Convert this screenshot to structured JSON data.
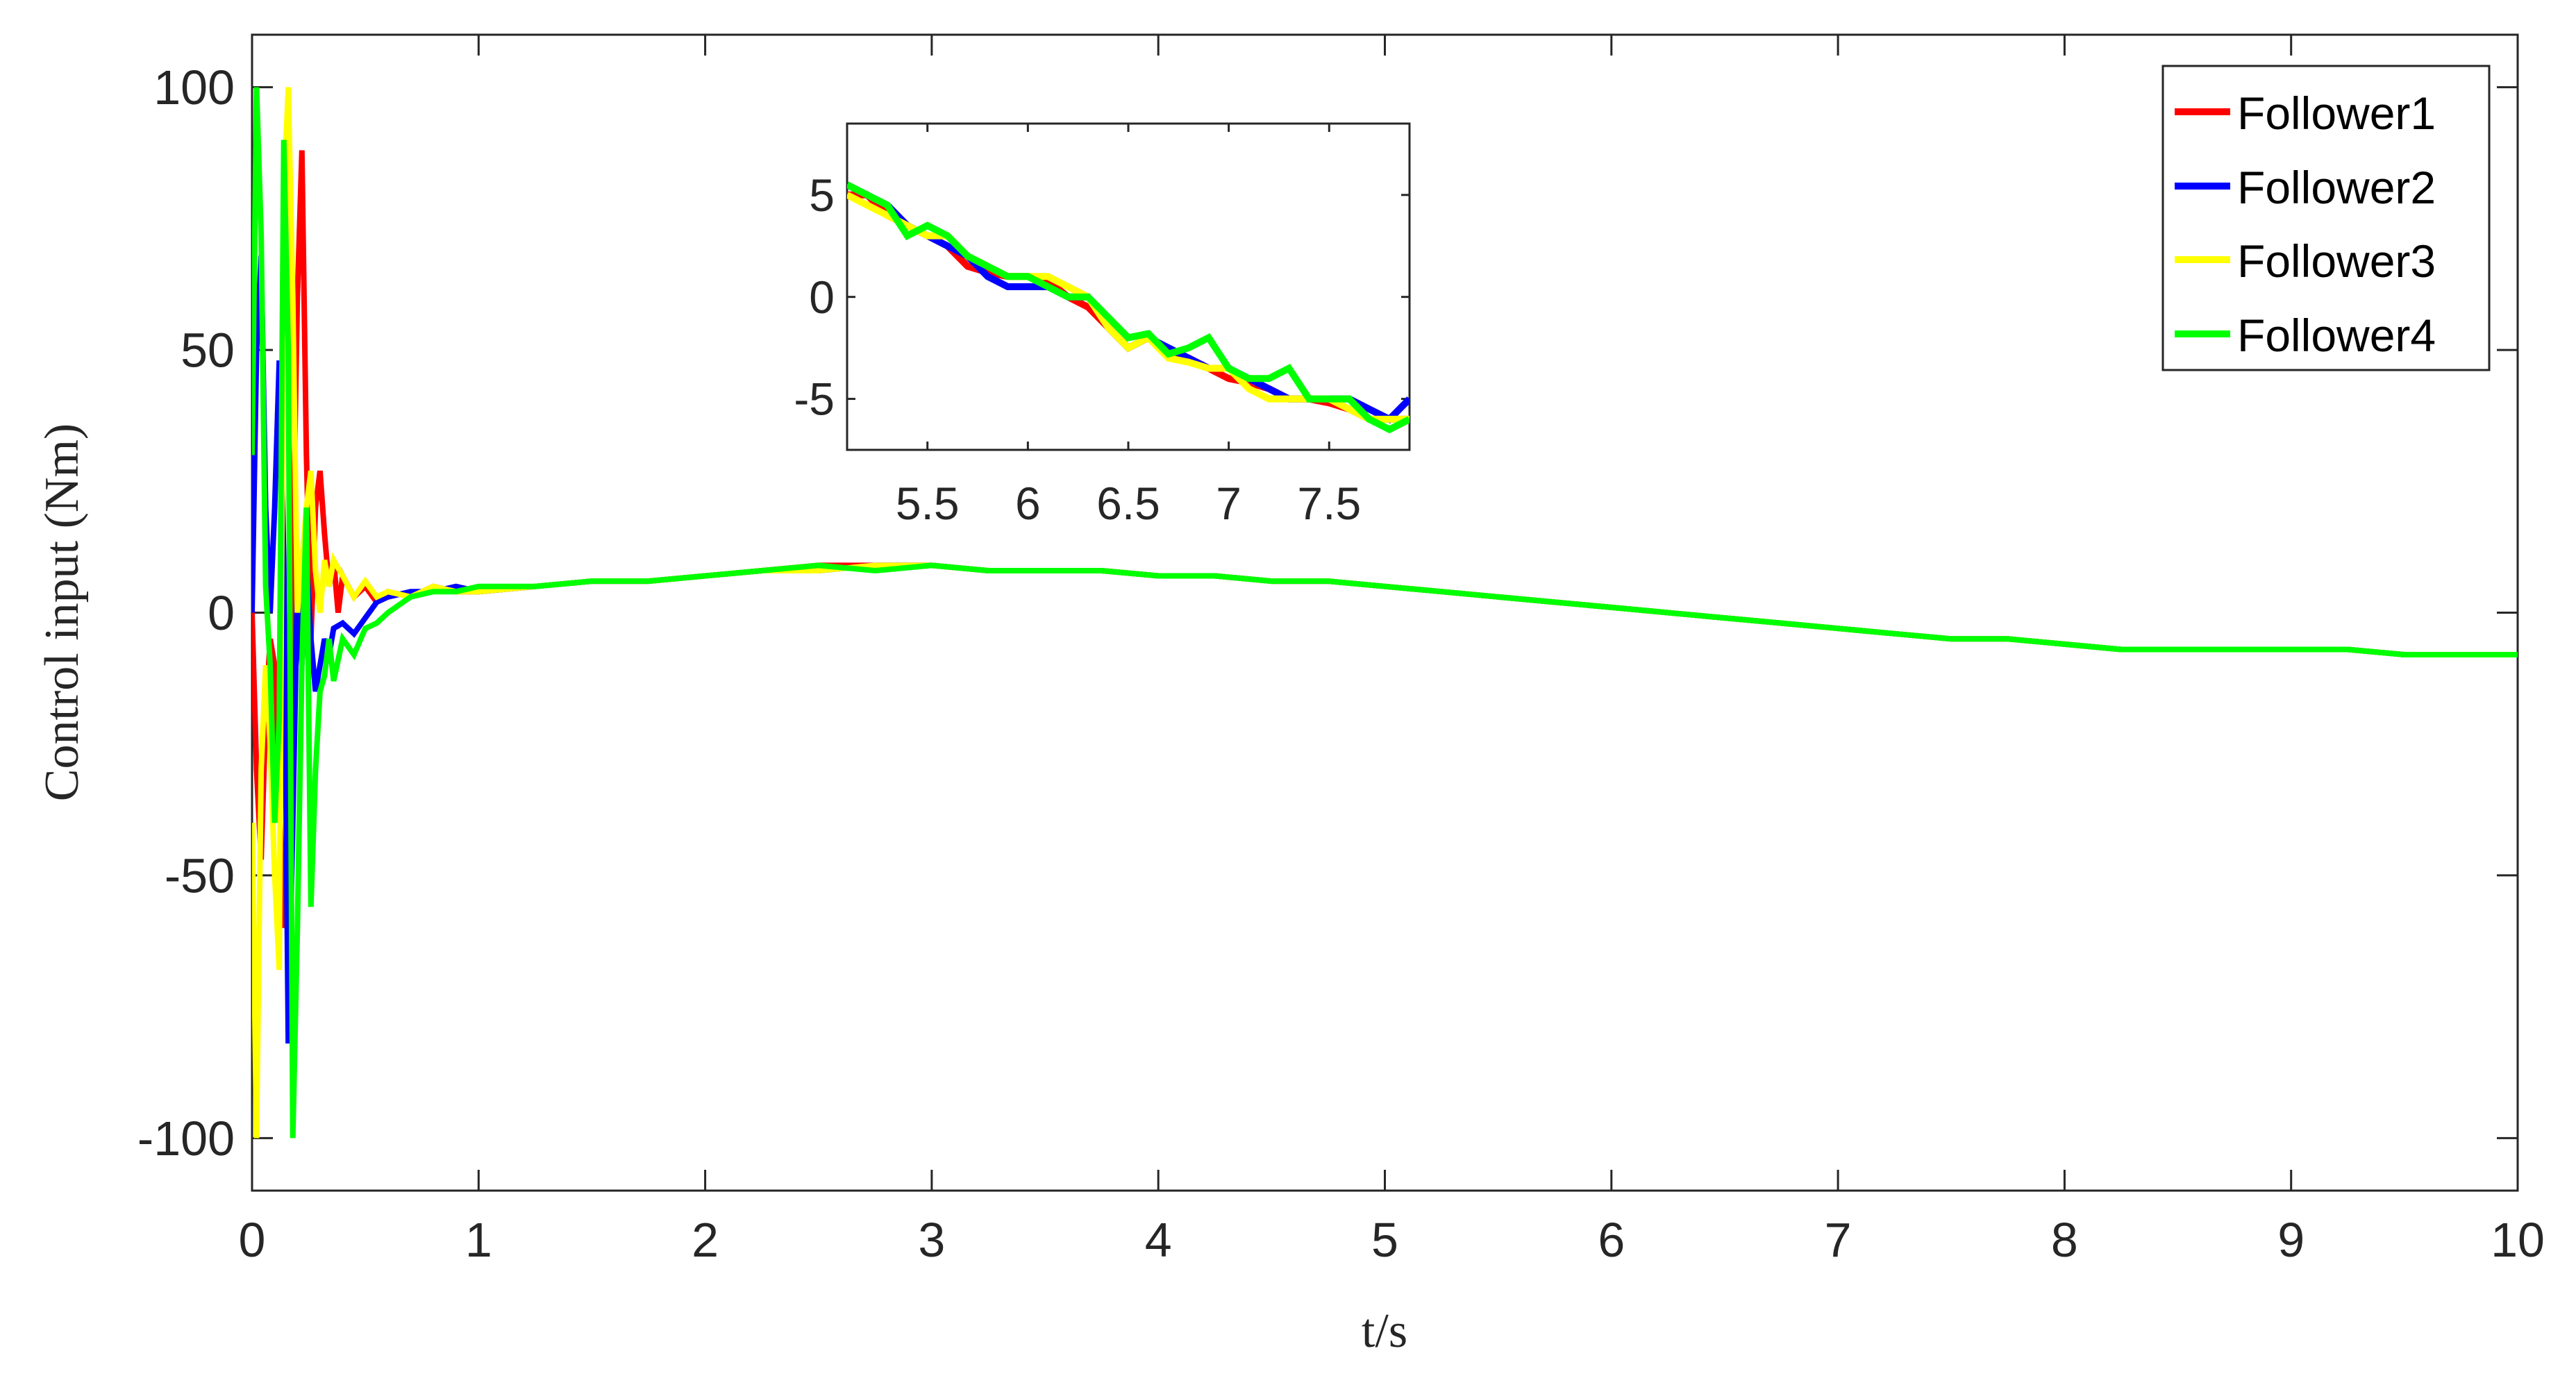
{
  "chart_data": [
    {
      "id": "main",
      "type": "line",
      "title": "",
      "xlabel": "t/s",
      "ylabel": "Control input (Nm)",
      "xlim": [
        0,
        10
      ],
      "ylim": [
        -110,
        110
      ],
      "xticks": [
        0,
        1,
        2,
        3,
        4,
        5,
        6,
        7,
        8,
        9,
        10
      ],
      "xtick_labels": [
        "0",
        "1",
        "2",
        "3",
        "4",
        "5",
        "6",
        "7",
        "8",
        "9",
        "10"
      ],
      "yticks": [
        -100,
        -50,
        0,
        50,
        100
      ],
      "ytick_labels": [
        "-100",
        "-50",
        "0",
        "50",
        "100"
      ],
      "grid": false,
      "legend_position": "top-right",
      "series": [
        {
          "name": "Follower1",
          "color": "#ff0000",
          "x": [
            0,
            0.02,
            0.04,
            0.06,
            0.08,
            0.1,
            0.12,
            0.14,
            0.16,
            0.18,
            0.2,
            0.22,
            0.24,
            0.26,
            0.28,
            0.3,
            0.32,
            0.34,
            0.36,
            0.38,
            0.4,
            0.45,
            0.5,
            0.55,
            0.6,
            0.7,
            0.8,
            0.9,
            1,
            1.25,
            1.5,
            1.75,
            2,
            2.25,
            2.5,
            2.75,
            3,
            3.25,
            3.5,
            3.75,
            4,
            4.25,
            4.5,
            4.75,
            5,
            5.25,
            5.5,
            5.75,
            6,
            6.25,
            6.5,
            6.75,
            7,
            7.25,
            7.5,
            7.75,
            8,
            8.25,
            8.5,
            8.75,
            9,
            9.25,
            9.5,
            9.75,
            10
          ],
          "y": [
            0,
            -30,
            -47,
            -20,
            -5,
            -10,
            -35,
            -60,
            -40,
            10,
            60,
            88,
            30,
            -5,
            20,
            27,
            15,
            5,
            10,
            0,
            7,
            3,
            5,
            2,
            4,
            3,
            5,
            4,
            4,
            5,
            6,
            6,
            7,
            8,
            9,
            9,
            9,
            8,
            8,
            8,
            7,
            7,
            6,
            6,
            5,
            4,
            3,
            2,
            1,
            0,
            -1,
            -2,
            -3,
            -4,
            -5,
            -5,
            -6,
            -7,
            -7,
            -7,
            -7,
            -7,
            -8,
            -8,
            -8
          ]
        },
        {
          "name": "Follower2",
          "color": "#0000ff",
          "x": [
            0,
            0.02,
            0.04,
            0.06,
            0.08,
            0.1,
            0.12,
            0.14,
            0.16,
            0.18,
            0.2,
            0.22,
            0.24,
            0.26,
            0.28,
            0.3,
            0.32,
            0.34,
            0.36,
            0.4,
            0.45,
            0.5,
            0.55,
            0.6,
            0.7,
            0.8,
            0.9,
            1,
            1.25,
            1.5,
            1.75,
            2,
            2.25,
            2.5,
            2.75,
            3,
            3.25,
            3.5,
            3.75,
            4,
            4.25,
            4.5,
            4.75,
            5,
            5.25,
            5.5,
            5.75,
            6,
            6.25,
            6.5,
            6.75,
            7,
            7.25,
            7.5,
            7.75,
            8,
            8.25,
            8.5,
            8.75,
            9,
            9.25,
            9.5,
            9.75,
            10
          ],
          "y": [
            0,
            50,
            68,
            20,
            0,
            20,
            48,
            10,
            -82,
            -40,
            5,
            -10,
            10,
            -5,
            -15,
            -10,
            -5,
            -8,
            -3,
            -2,
            -4,
            -1,
            2,
            3,
            4,
            4,
            5,
            4,
            5,
            6,
            6,
            7,
            8,
            8,
            9,
            9,
            8,
            8,
            8,
            7,
            7,
            6,
            6,
            5,
            4,
            3,
            2,
            1,
            0,
            -1,
            -2,
            -3,
            -4,
            -5,
            -5,
            -6,
            -7,
            -7,
            -7,
            -7,
            -7,
            -8,
            -8,
            -8
          ]
        },
        {
          "name": "Follower3",
          "color": "#ffff00",
          "x": [
            0,
            0.02,
            0.04,
            0.06,
            0.08,
            0.1,
            0.12,
            0.14,
            0.16,
            0.18,
            0.2,
            0.22,
            0.24,
            0.26,
            0.28,
            0.3,
            0.32,
            0.34,
            0.36,
            0.4,
            0.45,
            0.5,
            0.55,
            0.6,
            0.7,
            0.8,
            0.9,
            1,
            1.25,
            1.5,
            1.75,
            2,
            2.25,
            2.5,
            2.75,
            3,
            3.25,
            3.5,
            3.75,
            4,
            4.25,
            4.5,
            4.75,
            5,
            5.25,
            5.5,
            5.75,
            6,
            6.25,
            6.5,
            6.75,
            7,
            7.25,
            7.5,
            7.75,
            8,
            8.25,
            8.5,
            8.75,
            9,
            9.25,
            9.5,
            9.75,
            10
          ],
          "y": [
            -40,
            -100,
            -30,
            -10,
            -25,
            -50,
            -68,
            80,
            100,
            60,
            0,
            10,
            20,
            27,
            8,
            0,
            10,
            5,
            10,
            7,
            3,
            6,
            3,
            4,
            3,
            5,
            4,
            4,
            5,
            6,
            6,
            7,
            8,
            8,
            9,
            9,
            8,
            8,
            8,
            7,
            7,
            6,
            6,
            5,
            4,
            3,
            2,
            1,
            0,
            -1,
            -2,
            -3,
            -4,
            -5,
            -5,
            -6,
            -7,
            -7,
            -7,
            -7,
            -7,
            -8,
            -8,
            -8
          ]
        },
        {
          "name": "Follower4",
          "color": "#00ff00",
          "x": [
            0,
            0.02,
            0.04,
            0.06,
            0.08,
            0.1,
            0.12,
            0.14,
            0.16,
            0.18,
            0.2,
            0.22,
            0.24,
            0.26,
            0.28,
            0.3,
            0.32,
            0.34,
            0.36,
            0.4,
            0.45,
            0.5,
            0.55,
            0.6,
            0.7,
            0.8,
            0.9,
            1,
            1.25,
            1.5,
            1.75,
            2,
            2.25,
            2.5,
            2.75,
            3,
            3.25,
            3.5,
            3.75,
            4,
            4.25,
            4.5,
            4.75,
            5,
            5.25,
            5.5,
            5.75,
            6,
            6.25,
            6.5,
            6.75,
            7,
            7.25,
            7.5,
            7.75,
            8,
            8.25,
            8.5,
            8.75,
            9,
            9.25,
            9.5,
            9.75,
            10
          ],
          "y": [
            30,
            100,
            72,
            5,
            -10,
            -40,
            -20,
            90,
            50,
            -100,
            -60,
            -10,
            20,
            -56,
            -30,
            -15,
            -12,
            -5,
            -13,
            -5,
            -8,
            -3,
            -2,
            0,
            3,
            4,
            4,
            5,
            5,
            6,
            6,
            7,
            8,
            9,
            8,
            9,
            8,
            8,
            8,
            7,
            7,
            6,
            6,
            5,
            4,
            3,
            2,
            1,
            0,
            -1,
            -2,
            -3,
            -4,
            -5,
            -5,
            -6,
            -7,
            -7,
            -7,
            -7,
            -7,
            -8,
            -8,
            -8
          ]
        }
      ]
    },
    {
      "id": "inset",
      "type": "line",
      "title": "",
      "xlabel": "",
      "ylabel": "",
      "xlim": [
        5.1,
        7.9
      ],
      "ylim": [
        -7.5,
        8.5
      ],
      "xticks": [
        5.5,
        6,
        6.5,
        7,
        7.5
      ],
      "xtick_labels": [
        "5.5",
        "6",
        "6.5",
        "7",
        "7.5"
      ],
      "yticks": [
        -5,
        0,
        5
      ],
      "ytick_labels": [
        "-5",
        "0",
        "5"
      ],
      "grid": false,
      "series": [
        {
          "name": "Follower1",
          "color": "#ff0000",
          "x": [
            5.1,
            5.2,
            5.3,
            5.4,
            5.5,
            5.6,
            5.7,
            5.8,
            5.9,
            6.0,
            6.1,
            6.2,
            6.3,
            6.4,
            6.5,
            6.6,
            6.7,
            6.8,
            6.9,
            7.0,
            7.1,
            7.2,
            7.3,
            7.4,
            7.5,
            7.6,
            7.7,
            7.8,
            7.9
          ],
          "y": [
            5,
            5,
            4,
            3.5,
            3,
            2.5,
            1.5,
            1.2,
            1,
            1,
            0.8,
            0,
            -0.5,
            -1.5,
            -2.5,
            -2,
            -2.8,
            -3,
            -3.5,
            -4,
            -4.2,
            -4.5,
            -5,
            -5,
            -5.2,
            -5.5,
            -6,
            -6,
            -6
          ]
        },
        {
          "name": "Follower2",
          "color": "#0000ff",
          "x": [
            5.1,
            5.2,
            5.3,
            5.4,
            5.5,
            5.6,
            5.7,
            5.8,
            5.9,
            6.0,
            6.1,
            6.2,
            6.3,
            6.4,
            6.5,
            6.6,
            6.7,
            6.8,
            6.9,
            7.0,
            7.1,
            7.2,
            7.3,
            7.4,
            7.5,
            7.6,
            7.7,
            7.8,
            7.9
          ],
          "y": [
            5.5,
            5,
            4.5,
            3.5,
            3,
            2.5,
            2,
            1,
            0.5,
            0.5,
            0.5,
            0,
            0,
            -1.5,
            -2.5,
            -2,
            -2.5,
            -3,
            -3.5,
            -3.5,
            -4,
            -4.5,
            -5,
            -5,
            -5,
            -5,
            -5.5,
            -6,
            -5
          ]
        },
        {
          "name": "Follower3",
          "color": "#ffff00",
          "x": [
            5.1,
            5.2,
            5.3,
            5.4,
            5.5,
            5.6,
            5.7,
            5.8,
            5.9,
            6.0,
            6.1,
            6.2,
            6.3,
            6.4,
            6.5,
            6.6,
            6.7,
            6.8,
            6.9,
            7.0,
            7.1,
            7.2,
            7.3,
            7.4,
            7.5,
            7.6,
            7.7,
            7.8,
            7.9
          ],
          "y": [
            5,
            4.5,
            4,
            3.5,
            3,
            3,
            2,
            1.5,
            1,
            1,
            1,
            0.5,
            0,
            -1.5,
            -2.5,
            -2,
            -3,
            -3.2,
            -3.5,
            -3.5,
            -4.5,
            -5,
            -5,
            -5,
            -5,
            -5.5,
            -6,
            -6,
            -6
          ]
        },
        {
          "name": "Follower4",
          "color": "#00ff00",
          "x": [
            5.1,
            5.2,
            5.3,
            5.4,
            5.5,
            5.6,
            5.7,
            5.8,
            5.9,
            6.0,
            6.1,
            6.2,
            6.3,
            6.4,
            6.5,
            6.6,
            6.7,
            6.8,
            6.9,
            7.0,
            7.1,
            7.2,
            7.3,
            7.4,
            7.5,
            7.6,
            7.7,
            7.8,
            7.9
          ],
          "y": [
            5.5,
            5,
            4.5,
            3,
            3.5,
            3,
            2,
            1.5,
            1,
            1,
            0.5,
            0,
            0,
            -1,
            -2,
            -1.8,
            -2.8,
            -2.5,
            -2,
            -3.5,
            -4,
            -4,
            -3.5,
            -5,
            -5,
            -5,
            -6,
            -6.5,
            -6
          ]
        }
      ]
    }
  ]
}
